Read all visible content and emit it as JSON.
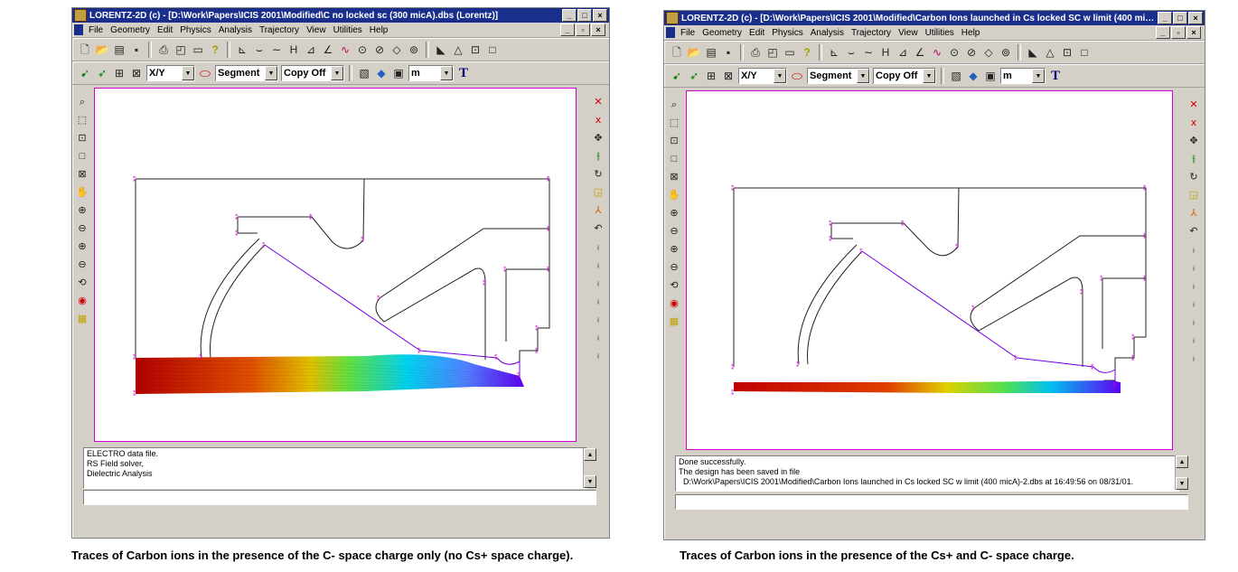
{
  "windows": [
    {
      "title": "LORENTZ-2D (c) - [D:\\Work\\Papers\\ICIS 2001\\Modified\\C no locked sc (300 micA).dbs (Lorentz)]",
      "status_text": "ELECTRO data file.\nRS Field solver,\nDielectric Analysis",
      "caption": "Traces of Carbon ions in the presence of the C- space charge only (no Cs+ space charge)."
    },
    {
      "title": "LORENTZ-2D (c) - [D:\\Work\\Papers\\ICIS 2001\\Modified\\Carbon Ions launched in Cs locked SC w limit (400 mic...",
      "status_text": "Done successfully.\nThe design has been saved in file\n  D:\\Work\\Papers\\ICIS 2001\\Modified\\Carbon Ions launched in Cs locked SC w limit (400 micA)-2.dbs at 16:49:56 on 08/31/01.",
      "caption": "Traces of Carbon ions in the presence of the Cs+ and C- space charge."
    }
  ],
  "menu": [
    "File",
    "Geometry",
    "Edit",
    "Physics",
    "Analysis",
    "Trajectory",
    "View",
    "Utilities",
    "Help"
  ],
  "toolbar2": {
    "view_combo": "X/Y",
    "mode_combo": "Segment",
    "copy_combo": "Copy Off",
    "units_combo": "m",
    "text_tool": "T"
  },
  "colors": {
    "title_bar": "#1a2f8c",
    "canvas_border": "#d000d0",
    "geometry_line": "#202020",
    "boundary_line": "#7000e0",
    "node_marker": "#d000d0"
  }
}
